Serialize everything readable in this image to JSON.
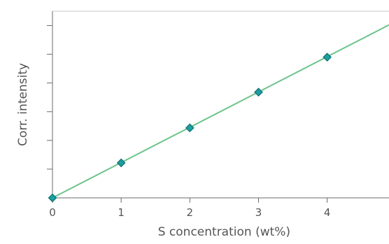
{
  "chart_data": {
    "type": "scatter",
    "title": "",
    "xlabel": "S concentration (wt%)",
    "ylabel": "Corr. intensity",
    "x_ticks": [
      "0",
      "1",
      "2",
      "3",
      "4"
    ],
    "xlim": [
      0,
      4.9
    ],
    "y_tick_count": 6,
    "y_tick_labels_shown": false,
    "grid": false,
    "legend": "none",
    "series": [
      {
        "kind": "points",
        "marker": "diamond",
        "x": [
          0,
          1,
          2,
          3,
          4
        ],
        "y": [
          0,
          0.51,
          1.02,
          1.54,
          2.05
        ]
      }
    ],
    "fit_line": {
      "x": [
        0,
        4.9
      ],
      "y": [
        0,
        2.52
      ]
    },
    "ylim": [
      0,
      2.72
    ],
    "colors": {
      "marker_fill": "#1aa0a0",
      "marker_edge": "#0f6e70",
      "fit_line": "#6cc48a",
      "axis": "#6b6b6b",
      "frame": "#c8c8c8",
      "text": "#555555"
    }
  }
}
